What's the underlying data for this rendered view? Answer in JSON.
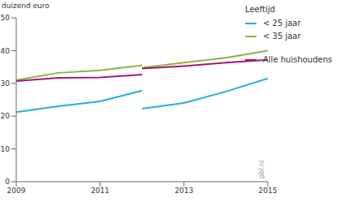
{
  "chart_data": {
    "type": "line",
    "y_label": "duizend euro",
    "legend_title": "Leeftijd",
    "annotation": "pbl.nl",
    "legend": "right",
    "x": [
      2009,
      2010,
      2011,
      2012,
      2012,
      2012,
      2013,
      2014,
      2015
    ],
    "series": [
      {
        "name": "< 25 jaar",
        "color": "#1fb1d9",
        "values": [
          21.2,
          23.0,
          24.5,
          27.8,
          null,
          22.3,
          24.0,
          27.5,
          31.5
        ]
      },
      {
        "name": "< 35 jaar",
        "color": "#8fb23a",
        "values": [
          31.0,
          33.2,
          34.0,
          35.5,
          null,
          34.8,
          36.3,
          37.8,
          40.0
        ]
      },
      {
        "name": "Alle huishoudens",
        "color": "#a21a72",
        "values": [
          30.7,
          31.7,
          31.8,
          32.7,
          null,
          34.5,
          35.3,
          36.3,
          37.2
        ]
      }
    ],
    "xlim": [
      2009,
      2015
    ],
    "xticks": [
      2009,
      2011,
      2013,
      2015
    ],
    "ylim": [
      0,
      50
    ],
    "yticks": [
      0,
      10,
      20,
      30,
      40,
      50
    ],
    "grid": false
  }
}
